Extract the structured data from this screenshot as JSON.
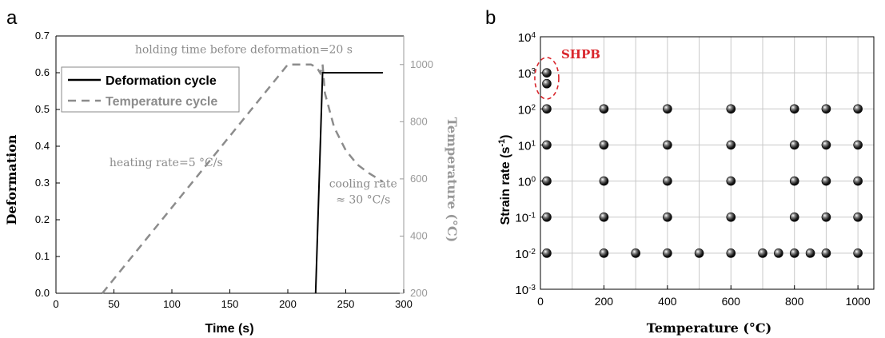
{
  "chart_data": [
    {
      "panel_label": "a",
      "type": "line",
      "xlabel": "Time (s)",
      "ylabel": "Deformation",
      "y2label": "Temperature (°C)",
      "xlim": [
        0,
        300
      ],
      "ylim": [
        0.0,
        0.7
      ],
      "y2lim": [
        200,
        1100
      ],
      "xticks": [
        0,
        50,
        100,
        150,
        200,
        250,
        300
      ],
      "yticks": [
        0.0,
        0.1,
        0.2,
        0.3,
        0.4,
        0.5,
        0.6,
        0.7
      ],
      "y2ticks": [
        200,
        400,
        600,
        800,
        1000
      ],
      "legend_position": "top-left",
      "colors": {
        "deformation": "#000000",
        "temperature": "#8c8c8c",
        "axis2": "#999999"
      },
      "series": [
        {
          "name": "Deformation cycle",
          "axis": "left",
          "style": "solid",
          "x": [
            224,
            230,
            233,
            282
          ],
          "y": [
            0.0,
            0.6,
            0.6,
            0.6
          ]
        },
        {
          "name": "Temperature cycle",
          "axis": "right",
          "style": "dashed",
          "x": [
            40,
            200,
            220,
            225,
            228,
            230,
            232,
            240,
            250,
            260,
            270,
            282
          ],
          "y": [
            200,
            1000,
            1000,
            990,
            970,
            1000,
            900,
            780,
            700,
            650,
            620,
            590
          ]
        }
      ],
      "annotations": [
        {
          "text": "holding time before deformation=20 s",
          "x": 162,
          "y": 1040,
          "axis": "right"
        },
        {
          "text": "heating rate=5 °C/s",
          "x": 95,
          "y": 645,
          "axis": "right"
        },
        {
          "text": "cooling rate",
          "x": 265,
          "y": 570,
          "axis": "right"
        },
        {
          "text": "≈ 30 °C/s",
          "x": 265,
          "y": 515,
          "axis": "right"
        }
      ]
    },
    {
      "panel_label": "b",
      "type": "scatter",
      "xlabel": "Temperature (°C)",
      "ylabel": "Strain rate (s-1)",
      "xlim": [
        0,
        1050
      ],
      "ylim": [
        0.001,
        10000
      ],
      "log_y": true,
      "grid": true,
      "xticks": [
        0,
        200,
        400,
        600,
        800,
        1000
      ],
      "yticks": [
        "10-3",
        "10-2",
        "10-1",
        "100",
        "101",
        "102",
        "103",
        "104"
      ],
      "highlight": {
        "text": "SHPB",
        "color": "#d9262c"
      },
      "points": [
        [
          20,
          0.01
        ],
        [
          200,
          0.01
        ],
        [
          300,
          0.01
        ],
        [
          400,
          0.01
        ],
        [
          500,
          0.01
        ],
        [
          600,
          0.01
        ],
        [
          700,
          0.01
        ],
        [
          750,
          0.01
        ],
        [
          800,
          0.01
        ],
        [
          850,
          0.01
        ],
        [
          900,
          0.01
        ],
        [
          1000,
          0.01
        ],
        [
          20,
          0.1
        ],
        [
          200,
          0.1
        ],
        [
          400,
          0.1
        ],
        [
          600,
          0.1
        ],
        [
          800,
          0.1
        ],
        [
          900,
          0.1
        ],
        [
          1000,
          0.1
        ],
        [
          20,
          1
        ],
        [
          200,
          1
        ],
        [
          400,
          1
        ],
        [
          600,
          1
        ],
        [
          800,
          1
        ],
        [
          900,
          1
        ],
        [
          1000,
          1
        ],
        [
          20,
          10
        ],
        [
          200,
          10
        ],
        [
          400,
          10
        ],
        [
          600,
          10
        ],
        [
          800,
          10
        ],
        [
          900,
          10
        ],
        [
          1000,
          10
        ],
        [
          20,
          100
        ],
        [
          200,
          100
        ],
        [
          400,
          100
        ],
        [
          600,
          100
        ],
        [
          800,
          100
        ],
        [
          900,
          100
        ],
        [
          1000,
          100
        ],
        [
          20,
          500
        ],
        [
          20,
          1000
        ]
      ]
    }
  ]
}
